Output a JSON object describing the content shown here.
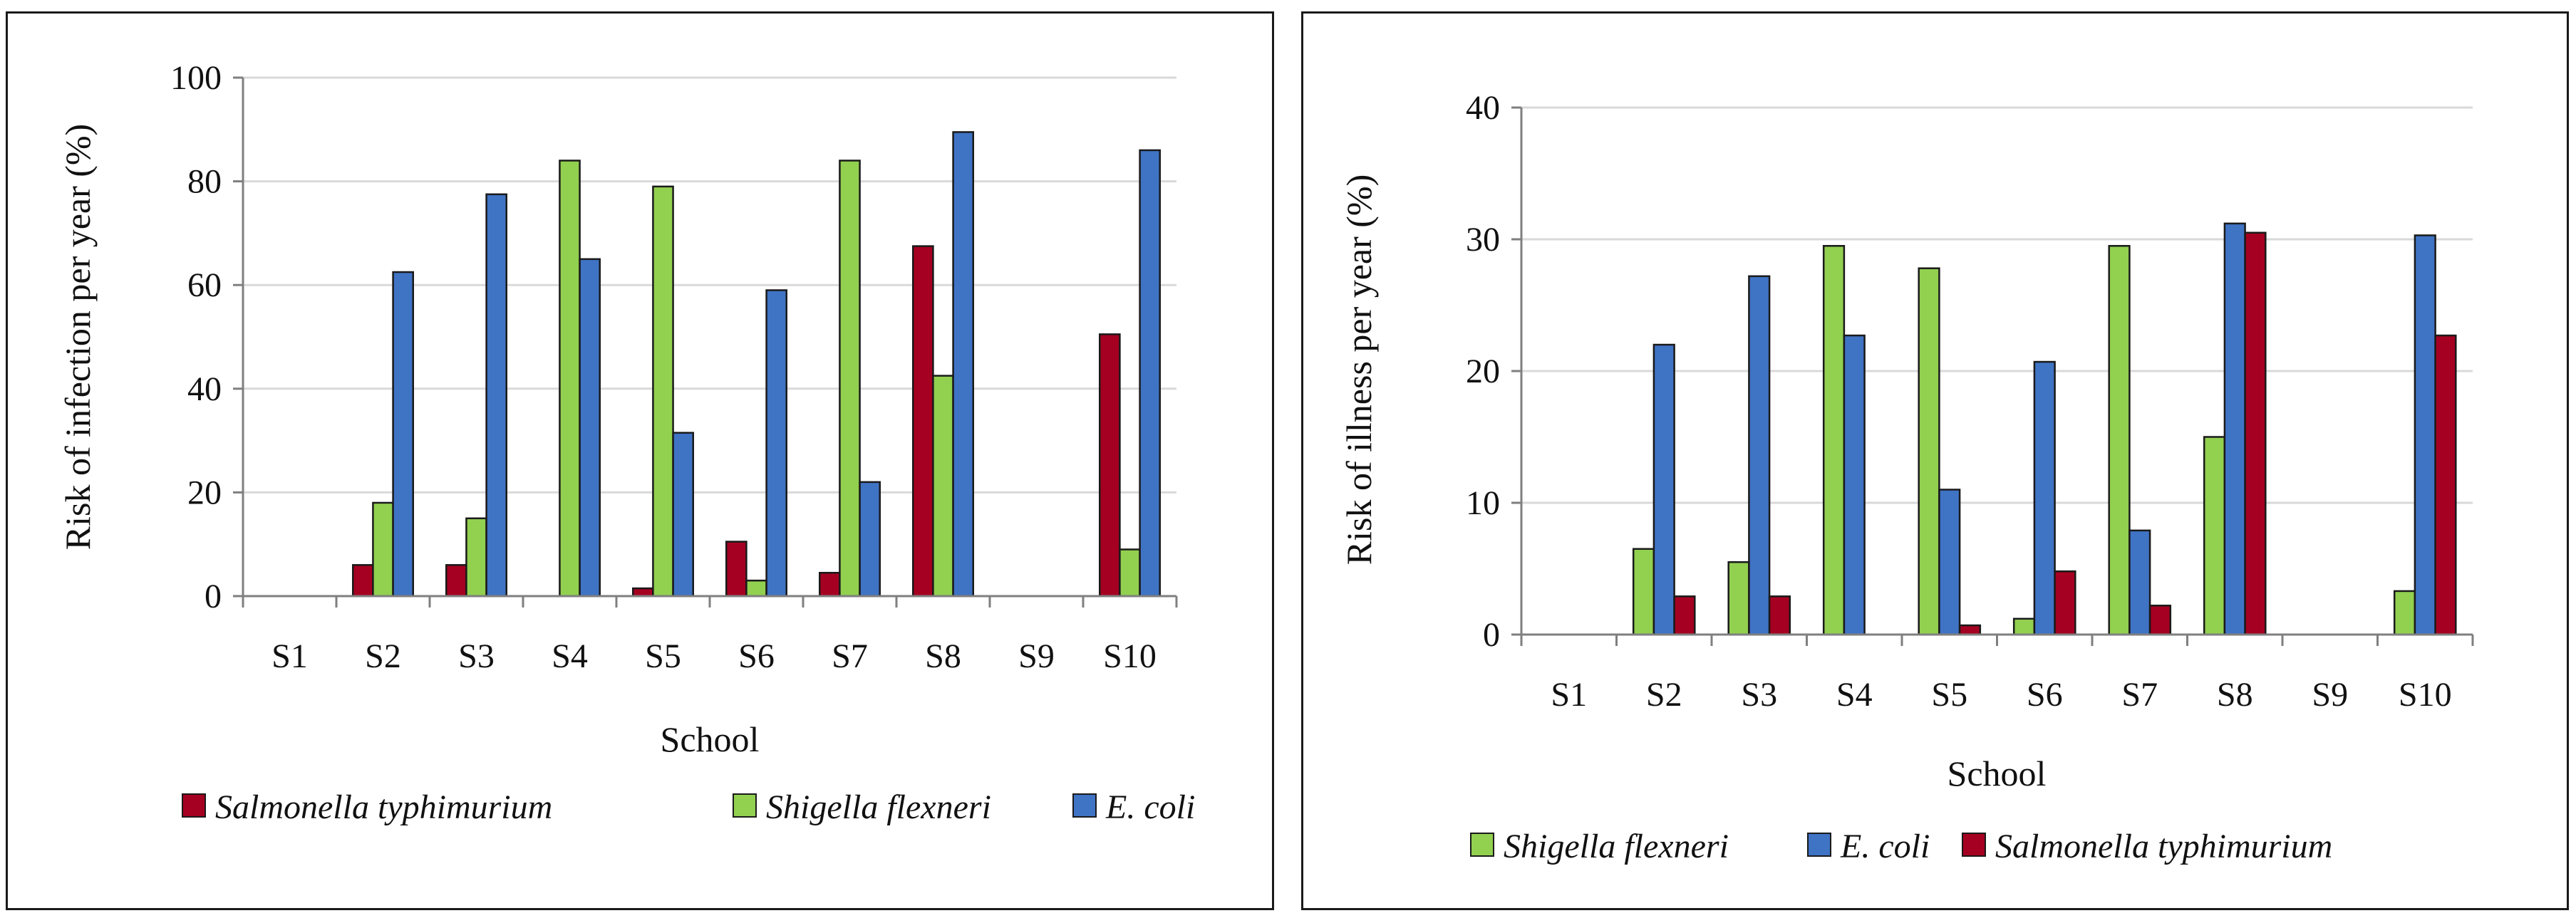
{
  "colors": {
    "salmonella": "#A50021",
    "shigella": "#92D050",
    "ecoli": "#3F73C4",
    "grid": "#d9d9d9",
    "axis": "#7f7f7f"
  },
  "chart_data": [
    {
      "type": "bar",
      "categories": [
        "S1",
        "S2",
        "S3",
        "S4",
        "S5",
        "S6",
        "S7",
        "S8",
        "S9",
        "S10"
      ],
      "series": [
        {
          "name": "Salmonella typhimurium",
          "color_key": "salmonella",
          "values": [
            0,
            6,
            6,
            0,
            1.5,
            10.5,
            4.5,
            67.5,
            0,
            50.5
          ]
        },
        {
          "name": "Shigella flexneri",
          "color_key": "shigella",
          "values": [
            0,
            18,
            15,
            84,
            79,
            3,
            84,
            42.5,
            0,
            9
          ]
        },
        {
          "name": "E. coli",
          "color_key": "ecoli",
          "values": [
            0,
            62.5,
            77.5,
            65,
            31.5,
            59,
            22,
            89.5,
            0,
            86
          ]
        }
      ],
      "title": "",
      "xlabel": "School",
      "ylabel": "Risk of infection per year (%)",
      "ylim": [
        0,
        100
      ],
      "yticks": [
        "0",
        "20",
        "40",
        "60",
        "80",
        "100"
      ],
      "grid": true,
      "legend": "bottom"
    },
    {
      "type": "bar",
      "categories": [
        "S1",
        "S2",
        "S3",
        "S4",
        "S5",
        "S6",
        "S7",
        "S8",
        "S9",
        "S10"
      ],
      "series": [
        {
          "name": "Shigella flexneri",
          "color_key": "shigella",
          "values": [
            0,
            6.5,
            5.5,
            29.5,
            27.8,
            1.2,
            29.5,
            15,
            0,
            3.3
          ]
        },
        {
          "name": "E. coli",
          "color_key": "ecoli",
          "values": [
            0,
            22,
            27.2,
            22.7,
            11,
            20.7,
            7.9,
            31.2,
            0,
            30.3
          ]
        },
        {
          "name": "Salmonella typhimurium",
          "color_key": "salmonella",
          "values": [
            0,
            2.9,
            2.9,
            0,
            0.7,
            4.8,
            2.2,
            30.5,
            0,
            22.7
          ]
        }
      ],
      "title": "",
      "xlabel": "School",
      "ylabel": "Risk of illness per year (%)",
      "ylim": [
        0,
        40
      ],
      "yticks": [
        "0",
        "10",
        "20",
        "30",
        "40"
      ],
      "grid": true,
      "legend": "bottom"
    }
  ]
}
